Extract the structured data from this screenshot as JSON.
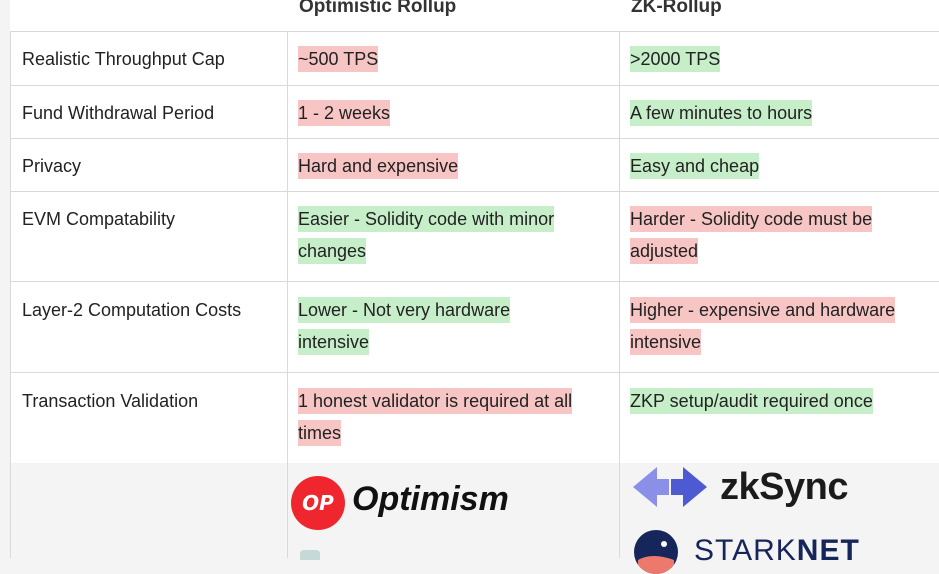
{
  "table": {
    "headers": [
      "Optimistic Rollup",
      "ZK-Rollup"
    ],
    "rows": [
      {
        "label": "Realistic Throughput Cap",
        "optimistic": {
          "text": "~500 TPS",
          "tone": "red"
        },
        "zk": {
          "text": ">2000 TPS",
          "tone": "green"
        }
      },
      {
        "label": "Fund Withdrawal Period",
        "optimistic": {
          "text": "1 - 2 weeks",
          "tone": "red"
        },
        "zk": {
          "text": "A few minutes to hours",
          "tone": "green"
        }
      },
      {
        "label": "Privacy",
        "optimistic": {
          "text": "Hard and expensive",
          "tone": "red"
        },
        "zk": {
          "text": "Easy and cheap",
          "tone": "green"
        }
      },
      {
        "label": "EVM Compatability",
        "optimistic": {
          "text": "Easier - Solidity code with minor changes",
          "tone": "green"
        },
        "zk": {
          "text": "Harder - Solidity code must be adjusted",
          "tone": "red"
        }
      },
      {
        "label": "Layer-2 Computation Costs",
        "optimistic": {
          "text": "Lower - Not very hardware intensive",
          "tone": "green"
        },
        "zk": {
          "text": "Higher - expensive and hardware intensive",
          "tone": "red"
        }
      },
      {
        "label": "Transaction Validation",
        "optimistic": {
          "text": "1 honest validator is required at all times",
          "tone": "red"
        },
        "zk": {
          "text": "ZKP setup/audit required once",
          "tone": "green"
        }
      }
    ]
  },
  "logos": {
    "optimism_badge": "OP",
    "optimism": "Optimism",
    "zksync": "zkSync",
    "starknet_a": "STARK",
    "starknet_b": "NET"
  },
  "colors": {
    "red_highlight": "#f7c6c4",
    "green_highlight": "#c6efc9",
    "op_red": "#f0262e",
    "starknet_navy": "#17265a",
    "zksync_blue": "#5a63d8"
  }
}
